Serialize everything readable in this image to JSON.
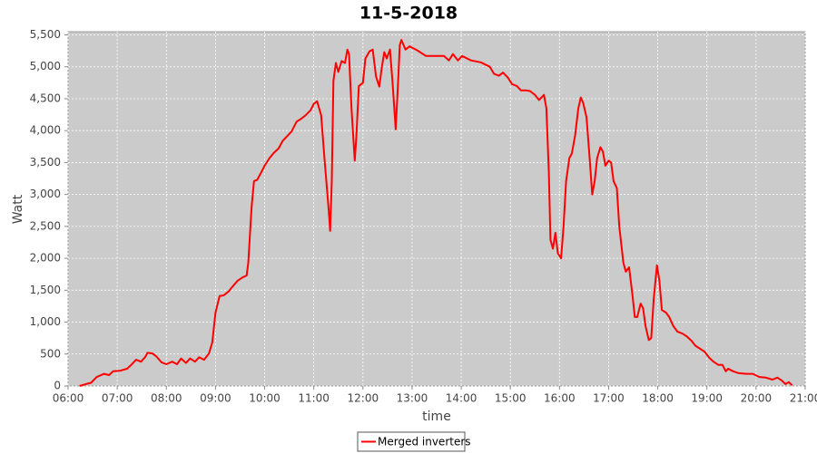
{
  "chart_data": {
    "type": "line",
    "title": "11-5-2018",
    "xlabel": "time",
    "ylabel": "Watt",
    "x": [
      "06:14",
      "06:22",
      "06:28",
      "06:35",
      "06:44",
      "06:50",
      "06:55",
      "07:04",
      "07:12",
      "07:17",
      "07:23",
      "07:29",
      "07:34",
      "07:37",
      "07:43",
      "07:48",
      "07:54",
      "08:00",
      "08:07",
      "08:13",
      "08:18",
      "08:24",
      "08:29",
      "08:35",
      "08:40",
      "08:46",
      "08:52",
      "08:56",
      "09:00",
      "09:05",
      "09:10",
      "09:16",
      "09:21",
      "09:27",
      "09:33",
      "09:38",
      "09:40",
      "09:44",
      "09:47",
      "09:51",
      "09:56",
      "10:00",
      "10:06",
      "10:11",
      "10:17",
      "10:22",
      "10:28",
      "10:33",
      "10:39",
      "10:44",
      "10:50",
      "10:56",
      "11:00",
      "11:04",
      "11:09",
      "11:13",
      "11:18",
      "11:20",
      "11:22",
      "11:24",
      "11:27",
      "11:30",
      "11:34",
      "11:38",
      "11:41",
      "11:43",
      "11:46",
      "11:50",
      "11:52",
      "11:55",
      "12:00",
      "12:03",
      "12:08",
      "12:12",
      "12:16",
      "12:20",
      "12:23",
      "12:26",
      "12:29",
      "12:33",
      "12:36",
      "12:40",
      "12:43",
      "12:45",
      "12:47",
      "12:52",
      "12:57",
      "13:06",
      "13:17",
      "13:28",
      "13:39",
      "13:45",
      "13:50",
      "13:56",
      "14:01",
      "14:12",
      "14:24",
      "14:35",
      "14:40",
      "14:46",
      "14:51",
      "14:57",
      "15:02",
      "15:08",
      "15:13",
      "15:19",
      "15:24",
      "15:30",
      "15:35",
      "15:41",
      "15:44",
      "15:47",
      "15:49",
      "15:52",
      "15:55",
      "15:58",
      "16:02",
      "16:05",
      "16:08",
      "16:12",
      "16:15",
      "16:19",
      "16:23",
      "16:26",
      "16:29",
      "16:33",
      "16:36",
      "16:40",
      "16:43",
      "16:46",
      "16:50",
      "16:53",
      "16:56",
      "17:00",
      "17:03",
      "17:06",
      "17:10",
      "17:13",
      "17:18",
      "17:21",
      "17:25",
      "17:29",
      "17:32",
      "17:35",
      "17:39",
      "17:42",
      "17:45",
      "17:49",
      "17:52",
      "17:55",
      "17:59",
      "18:02",
      "18:05",
      "18:10",
      "18:14",
      "18:19",
      "18:24",
      "18:30",
      "18:35",
      "18:41",
      "18:46",
      "18:52",
      "18:57",
      "19:03",
      "19:08",
      "19:14",
      "19:19",
      "19:23",
      "19:26",
      "19:32",
      "19:39",
      "19:48",
      "19:56",
      "20:04",
      "20:12",
      "20:20",
      "20:26",
      "20:31",
      "20:36",
      "20:40",
      "20:44"
    ],
    "series": [
      {
        "name": "Merged inverters",
        "color": "#ff0000",
        "values": [
          0,
          30,
          50,
          140,
          190,
          170,
          230,
          240,
          270,
          330,
          410,
          380,
          450,
          520,
          510,
          460,
          370,
          340,
          380,
          340,
          430,
          360,
          430,
          380,
          450,
          410,
          510,
          680,
          1150,
          1410,
          1420,
          1480,
          1560,
          1650,
          1700,
          1730,
          1930,
          2790,
          3210,
          3230,
          3350,
          3450,
          3570,
          3650,
          3720,
          3840,
          3920,
          3990,
          4140,
          4180,
          4240,
          4320,
          4420,
          4460,
          4240,
          3570,
          2790,
          2430,
          3210,
          4780,
          5060,
          4920,
          5090,
          5060,
          5270,
          5200,
          4350,
          3530,
          3920,
          4700,
          4750,
          5130,
          5240,
          5270,
          4850,
          4690,
          4990,
          5230,
          5130,
          5270,
          4780,
          4020,
          4780,
          5340,
          5420,
          5270,
          5320,
          5260,
          5170,
          5170,
          5170,
          5100,
          5200,
          5100,
          5170,
          5100,
          5070,
          5000,
          4890,
          4860,
          4910,
          4830,
          4730,
          4700,
          4630,
          4630,
          4620,
          4560,
          4480,
          4560,
          4350,
          3350,
          2290,
          2150,
          2400,
          2080,
          2000,
          2500,
          3210,
          3570,
          3640,
          3920,
          4350,
          4520,
          4430,
          4210,
          3710,
          3000,
          3210,
          3570,
          3740,
          3670,
          3450,
          3530,
          3500,
          3210,
          3100,
          2500,
          1930,
          1790,
          1860,
          1440,
          1080,
          1080,
          1290,
          1220,
          940,
          720,
          750,
          1360,
          1890,
          1650,
          1190,
          1150,
          1080,
          940,
          850,
          820,
          780,
          710,
          630,
          580,
          540,
          440,
          380,
          330,
          330,
          230,
          270,
          230,
          200,
          190,
          190,
          140,
          130,
          100,
          130,
          90,
          30,
          60,
          10
        ]
      }
    ],
    "xlim": [
      "06:00",
      "21:00"
    ],
    "xticks": [
      "06:00",
      "07:00",
      "08:00",
      "09:00",
      "10:00",
      "11:00",
      "12:00",
      "13:00",
      "14:00",
      "15:00",
      "16:00",
      "17:00",
      "18:00",
      "19:00",
      "20:00",
      "21:00"
    ],
    "ylim": [
      0,
      5550
    ],
    "yticks": [
      0,
      500,
      {
        "value": 1000,
        "label": "1,000"
      },
      {
        "value": 1500,
        "label": "1,500"
      },
      {
        "value": 2000,
        "label": "2,000"
      },
      {
        "value": 2500,
        "label": "2,500"
      },
      {
        "value": 3000,
        "label": "3,000"
      },
      {
        "value": 3500,
        "label": "3,500"
      },
      {
        "value": 4000,
        "label": "4,000"
      },
      {
        "value": 4500,
        "label": "4,500"
      },
      {
        "value": 5000,
        "label": "5,000"
      },
      {
        "value": 5500,
        "label": "5,500"
      }
    ],
    "grid": true,
    "legend": "bottom",
    "plot_background": "#cbcbcb"
  }
}
